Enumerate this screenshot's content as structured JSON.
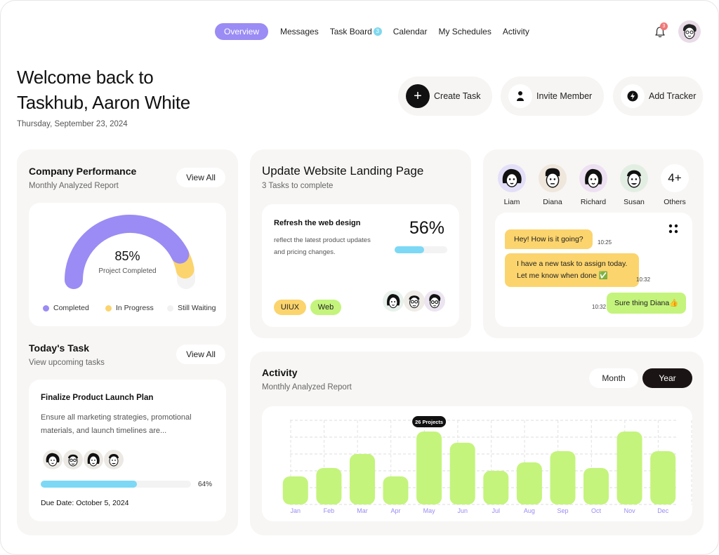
{
  "nav": {
    "tabs": [
      {
        "label": "Overview",
        "active": true
      },
      {
        "label": "Messages"
      },
      {
        "label": "Task Board",
        "badge": "3"
      },
      {
        "label": "Calendar"
      },
      {
        "label": "My Schedules"
      },
      {
        "label": "Activity"
      }
    ],
    "notification_count": "3"
  },
  "welcome": {
    "line1": "Welcome back to",
    "line2": "Taskhub, Aaron White",
    "date": "Thursday, September 23, 2024"
  },
  "actions": {
    "create": "Create Task",
    "invite": "Invite Member",
    "tracker": "Add Tracker"
  },
  "performance": {
    "title": "Company Performance",
    "subtitle": "Monthly Analyzed Report",
    "view_all": "View All",
    "percent": "85%",
    "percent_label": "Project Completed",
    "value": 85,
    "legend": [
      "Completed",
      "In Progress",
      "Still Waiting"
    ],
    "colors": {
      "completed": "#9a8cf4",
      "in_progress": "#fbd46d",
      "waiting": "#f1f1f1"
    }
  },
  "today": {
    "title": "Today's Task",
    "subtitle": "View upcoming tasks",
    "view_all": "View All",
    "task_title": "Finalize Product Launch Plan",
    "task_desc_1": "Ensure all marketing strategies, promotional",
    "task_desc_2": "materials, and launch timelines are...",
    "progress": 64,
    "progress_label": "64%",
    "due": "Due Date: October 5, 2024"
  },
  "website": {
    "title": "Update Website Landing Page",
    "subtitle": "3 Tasks to complete",
    "task_title": "Refresh the web design",
    "task_desc_1": "reflect the latest product updates",
    "task_desc_2": "and pricing changes.",
    "percent": "56%",
    "progress": 56,
    "tags": [
      "UIUX",
      "Web"
    ]
  },
  "chat": {
    "people": [
      "Liam",
      "Diana",
      "Richard",
      "Susan",
      "Others"
    ],
    "others_count": "4+",
    "messages": [
      {
        "text": "Hey! How is it going?",
        "time": "10:25"
      },
      {
        "text1": "I have a new task to assign today.",
        "text2": "Let me know when done ✅",
        "time": "10:32"
      },
      {
        "text": "Sure thing Diana👍",
        "time": "10:32"
      }
    ]
  },
  "activity": {
    "title": "Activity",
    "subtitle": "Monthly Analyzed Report",
    "segments": [
      "Month",
      "Year"
    ],
    "tooltip": "26 Projects"
  },
  "chart_data": {
    "type": "bar",
    "categories": [
      "Jan",
      "Feb",
      "Mar",
      "Apr",
      "May",
      "Jun",
      "Jul",
      "Aug",
      "Sep",
      "Oct",
      "Nov",
      "Dec"
    ],
    "values": [
      10,
      13,
      18,
      10,
      26,
      22,
      12,
      15,
      19,
      13,
      26,
      19
    ],
    "ylim": [
      0,
      30
    ],
    "grid": true,
    "color": "#c4f47c",
    "highlight": "May"
  }
}
